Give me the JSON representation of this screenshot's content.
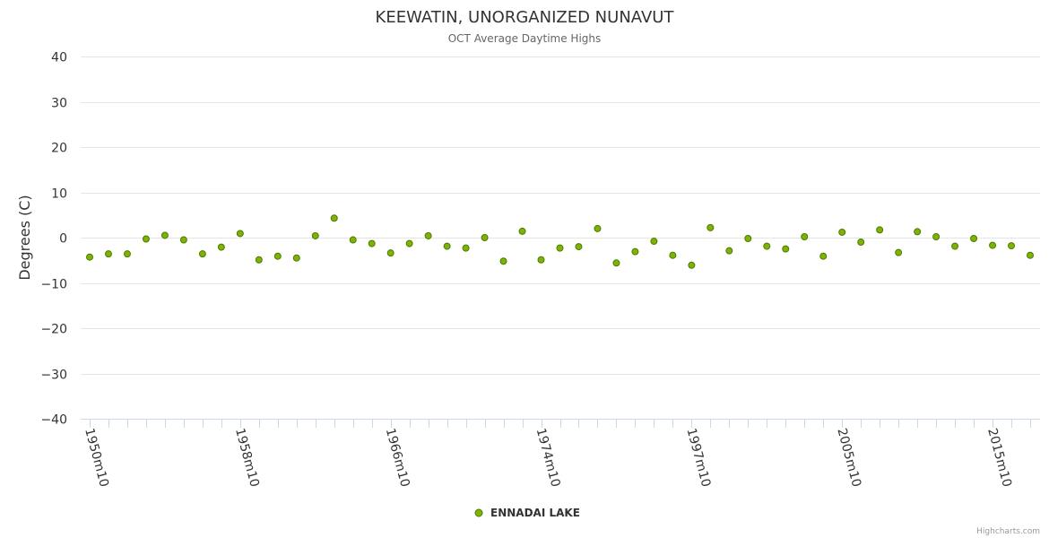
{
  "chart_data": {
    "type": "scatter",
    "title": "KEEWATIN, UNORGANIZED NUNAVUT",
    "subtitle": "OCT Average Daytime Highs",
    "ylabel": "Degrees (C)",
    "xlabel": "",
    "ylim": [
      -40,
      40
    ],
    "yticks": [
      40,
      30,
      20,
      10,
      0,
      -10,
      -20,
      -30,
      -40
    ],
    "ytick_labels": [
      "40",
      "30",
      "20",
      "10",
      "0",
      "−10",
      "−20",
      "−30",
      "−40"
    ],
    "xtick_labels": [
      {
        "index": 0,
        "label": "1950m10"
      },
      {
        "index": 8,
        "label": "1958m10"
      },
      {
        "index": 16,
        "label": "1966m10"
      },
      {
        "index": 24,
        "label": "1974m10"
      },
      {
        "index": 32,
        "label": "1997m10"
      },
      {
        "index": 40,
        "label": "2005m10"
      },
      {
        "index": 48,
        "label": "2015m10"
      }
    ],
    "grid": true,
    "legend_position": "bottom-center",
    "series": [
      {
        "name": "ENNADAI LAKE",
        "color": "#7cb305",
        "values": [
          -4.3,
          -3.6,
          -3.6,
          -0.3,
          0.5,
          -0.5,
          -3.6,
          -2.1,
          0.9,
          -4.9,
          -4.1,
          -4.5,
          0.4,
          4.3,
          -0.5,
          -1.3,
          -3.4,
          -1.3,
          0.4,
          -1.9,
          -2.3,
          0.0,
          -5.2,
          1.4,
          -4.9,
          -2.3,
          -2.0,
          2.0,
          -5.6,
          -3.1,
          -0.8,
          -3.9,
          -6.1,
          2.2,
          -2.9,
          -0.2,
          -1.9,
          -2.5,
          0.2,
          -4.1,
          1.2,
          -1.0,
          1.7,
          -3.3,
          1.3,
          0.2,
          -1.9,
          -0.2,
          -1.7,
          -1.8,
          -3.9
        ]
      }
    ]
  },
  "credit": "Highcharts.com"
}
